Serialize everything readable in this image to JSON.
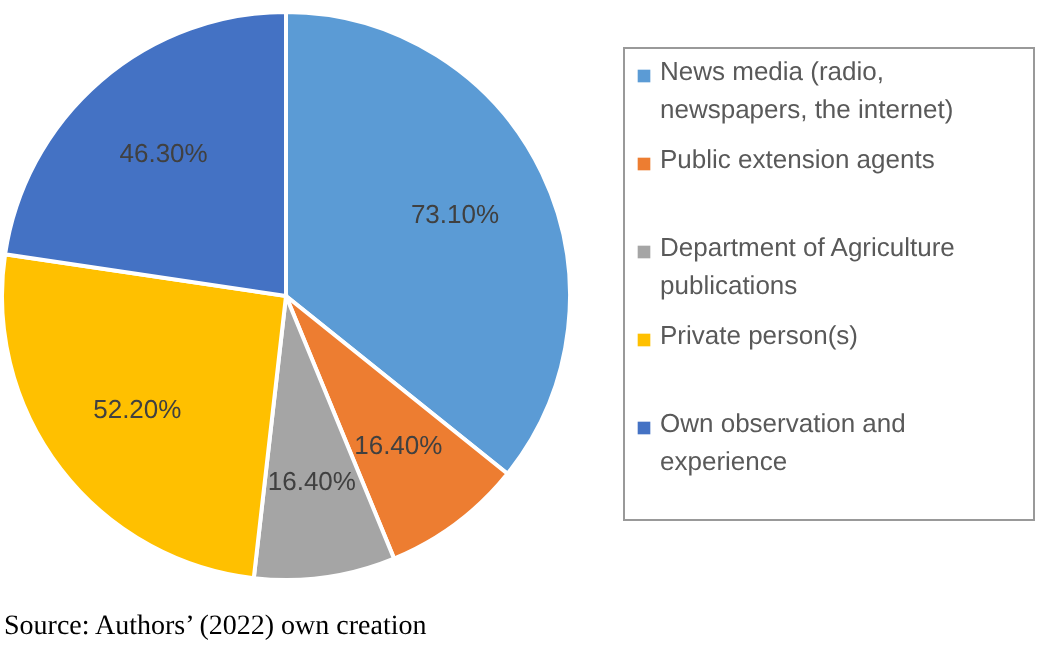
{
  "chart_data": {
    "type": "pie",
    "categories": [
      "News media (radio, newspapers,  the internet)",
      "Public extension agents",
      "Department of Agriculture publications",
      "Private person(s)",
      "Own observation and experience"
    ],
    "values": [
      73.1,
      16.4,
      16.4,
      52.2,
      46.3
    ],
    "value_labels": [
      "73.10%",
      "16.40%",
      "16.40%",
      "52.20%",
      "46.30%"
    ],
    "colors": [
      "#5b9bd5",
      "#ed7d31",
      "#a5a5a5",
      "#ffc000",
      "#4472c4"
    ],
    "legend": "right",
    "annotations": [
      "Source: Authors’ (2022) own creation"
    ]
  }
}
